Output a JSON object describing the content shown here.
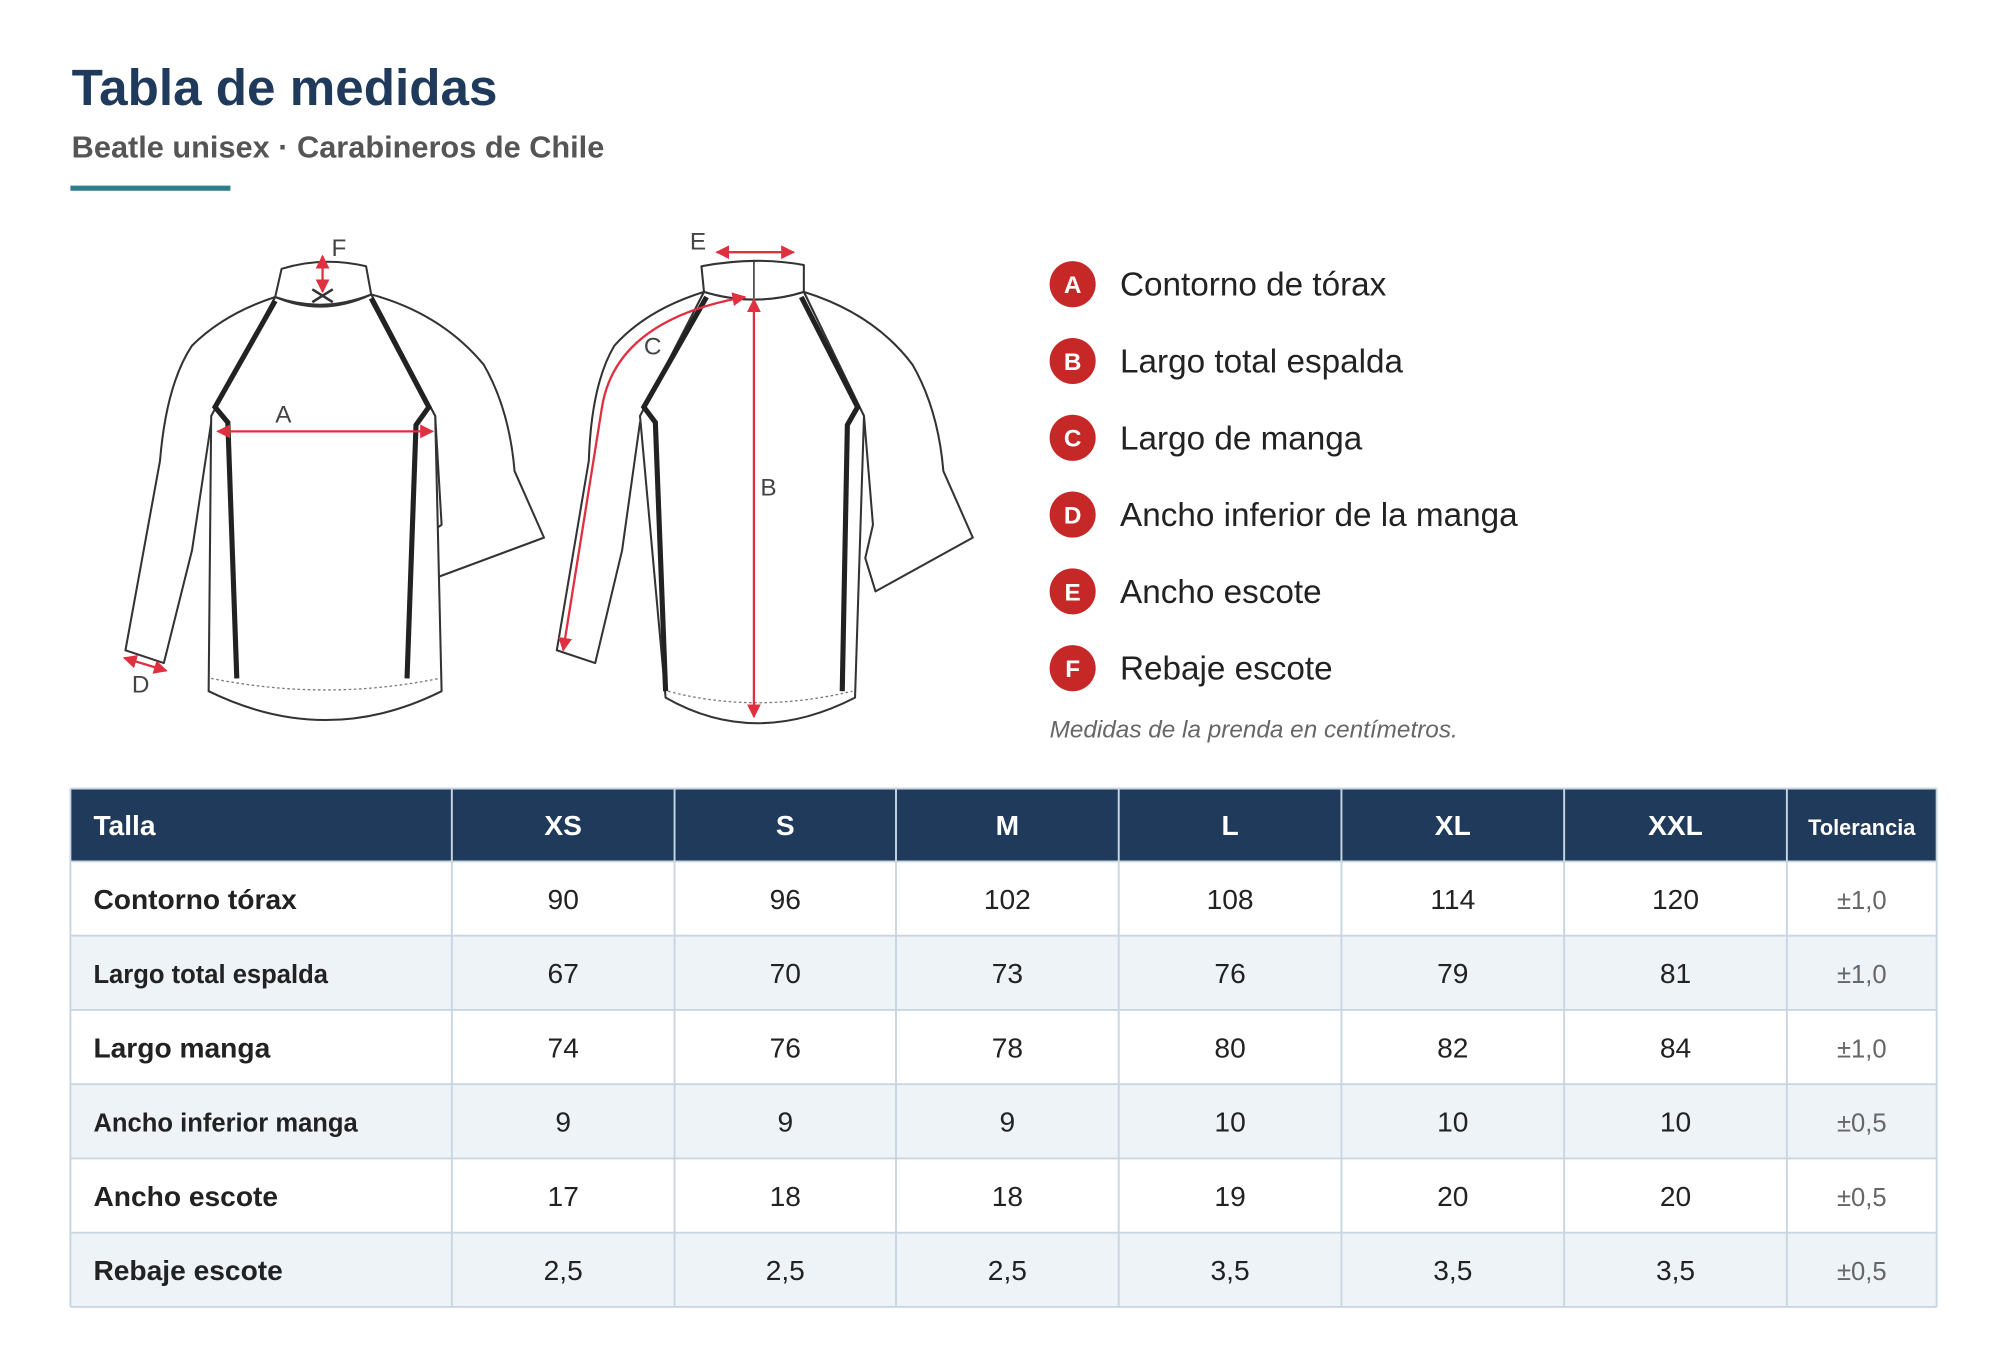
{
  "header": {
    "title": "Tabla de medidas",
    "subtitle": "Beatle unisex · Carabineros de Chile"
  },
  "legend": [
    {
      "letter": "A",
      "label": "Contorno de tórax"
    },
    {
      "letter": "B",
      "label": "Largo total espalda"
    },
    {
      "letter": "C",
      "label": "Largo de manga"
    },
    {
      "letter": "D",
      "label": "Ancho inferior de la manga"
    },
    {
      "letter": "E",
      "label": "Ancho escote"
    },
    {
      "letter": "F",
      "label": "Rebaje escote"
    }
  ],
  "note": "Medidas de la prenda en centímetros.",
  "table": {
    "columns": [
      "Talla",
      "XS",
      "S",
      "M",
      "L",
      "XL",
      "XXL",
      "Tolerancia"
    ],
    "rows": [
      [
        "Contorno tórax",
        "90",
        "96",
        "102",
        "108",
        "114",
        "120",
        "±1,0"
      ],
      [
        "Largo total espalda",
        "67",
        "70",
        "73",
        "76",
        "79",
        "81",
        "±1,0"
      ],
      [
        "Largo manga",
        "74",
        "76",
        "78",
        "80",
        "82",
        "84",
        "±1,0"
      ],
      [
        "Ancho inferior manga",
        "9",
        "9",
        "9",
        "10",
        "10",
        "10",
        "±0,5"
      ],
      [
        "Ancho escote",
        "17",
        "18",
        "18",
        "19",
        "20",
        "20",
        "±0,5"
      ],
      [
        "Rebaje escote",
        "2,5",
        "2,5",
        "2,5",
        "3,5",
        "3,5",
        "3,5",
        "±0,5"
      ]
    ]
  }
}
